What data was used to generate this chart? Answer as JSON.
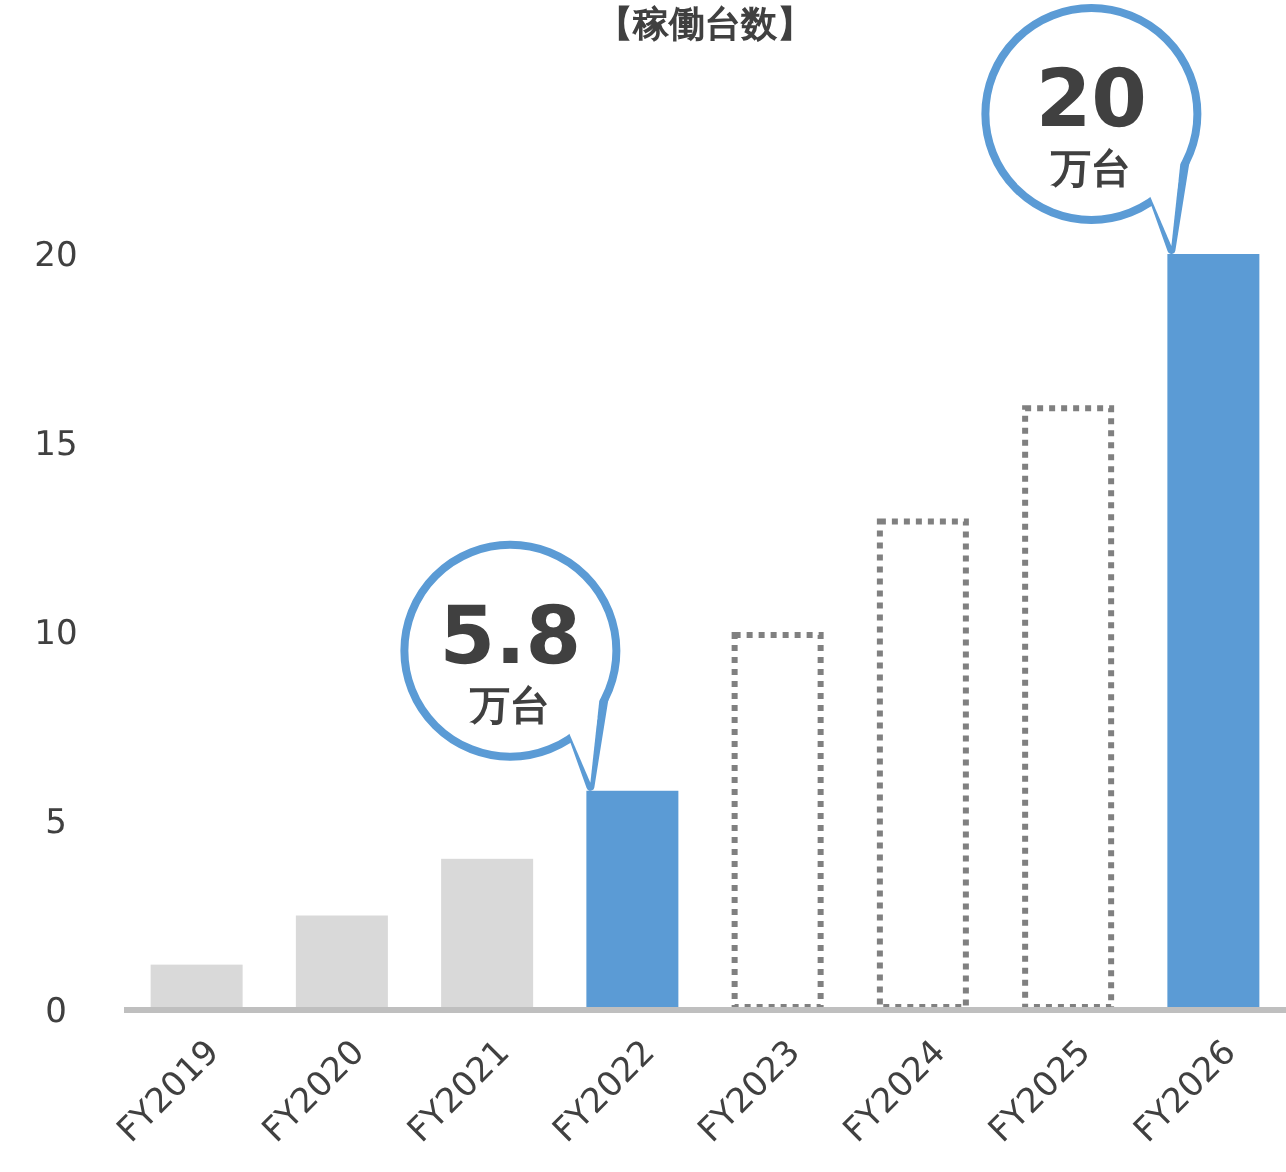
{
  "chart_data": {
    "type": "bar",
    "title": "【稼働台数】",
    "categories": [
      "FY2019",
      "FY2020",
      "FY2021",
      "FY2022",
      "FY2023",
      "FY2024",
      "FY2025",
      "FY2026"
    ],
    "series": [
      {
        "colors": [
          "#d9d9d9",
          "#d9d9d9",
          "#d9d9d9",
          "#5b9bd5",
          null,
          null,
          null,
          "#5b9bd5"
        ],
        "values": [
          1.2,
          2.5,
          4.0,
          5.8,
          null,
          null,
          null,
          20
        ]
      },
      {
        "color": "#808080",
        "line_style": "dotted",
        "values": [
          null,
          null,
          null,
          null,
          10,
          13,
          16,
          null
        ]
      }
    ],
    "ylim": [
      0,
      20
    ],
    "yticks": [
      0,
      5,
      10,
      15,
      20
    ],
    "grid": false,
    "annotations": [
      {
        "text": "5.8",
        "x": "FY2022",
        "y": 5.8
      },
      {
        "text": "万台",
        "x": "FY2022",
        "y": 5.8
      },
      {
        "text": "20",
        "x": "FY2026",
        "y": 20
      },
      {
        "text": "万台",
        "x": "FY2026",
        "y": 20
      }
    ]
  }
}
